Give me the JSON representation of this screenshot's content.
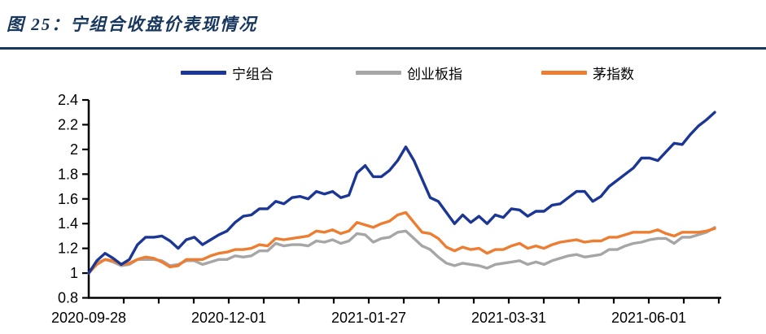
{
  "title": "图 25：宁组合收盘价表现情况",
  "colors": {
    "title_navy": "#17375E",
    "rule_navy": "#17375E",
    "axis_black": "#000000",
    "series_ning": "#1B3694",
    "series_chinext": "#A6A6A6",
    "series_mao": "#ED7D31"
  },
  "chart_data": {
    "type": "line",
    "title": "图 25：宁组合收盘价表现情况",
    "xlabel": "",
    "ylabel": "",
    "grid": false,
    "legend_position": "top",
    "ylim": [
      0.8,
      2.4
    ],
    "y_tick_labels": [
      "0.8",
      "1",
      "1.2",
      "1.4",
      "1.6",
      "1.8",
      "2",
      "2.2",
      "2.4"
    ],
    "x_tick_labels": [
      "2020-09-28",
      "2020-12-01",
      "2021-01-27",
      "2021-03-31",
      "2021-06-01"
    ],
    "x_label_tick_indices": [
      0,
      4,
      8,
      12,
      16
    ],
    "x_minor_tick_count": 18,
    "series": [
      {
        "name": "宁组合",
        "color": "#1B3694",
        "values": [
          1.0,
          1.1,
          1.16,
          1.12,
          1.07,
          1.11,
          1.23,
          1.29,
          1.29,
          1.3,
          1.26,
          1.2,
          1.27,
          1.29,
          1.23,
          1.27,
          1.31,
          1.34,
          1.41,
          1.46,
          1.47,
          1.52,
          1.52,
          1.58,
          1.56,
          1.61,
          1.62,
          1.6,
          1.66,
          1.64,
          1.66,
          1.61,
          1.63,
          1.81,
          1.87,
          1.78,
          1.78,
          1.83,
          1.91,
          2.02,
          1.91,
          1.76,
          1.61,
          1.58,
          1.49,
          1.4,
          1.47,
          1.41,
          1.46,
          1.4,
          1.47,
          1.45,
          1.52,
          1.51,
          1.46,
          1.5,
          1.5,
          1.55,
          1.56,
          1.61,
          1.66,
          1.66,
          1.58,
          1.62,
          1.7,
          1.75,
          1.8,
          1.85,
          1.93,
          1.93,
          1.91,
          1.98,
          2.05,
          2.04,
          2.12,
          2.19,
          2.24,
          2.3
        ]
      },
      {
        "name": "创业板指",
        "color": "#A6A6A6",
        "values": [
          1.0,
          1.08,
          1.11,
          1.09,
          1.06,
          1.07,
          1.11,
          1.11,
          1.11,
          1.1,
          1.06,
          1.07,
          1.1,
          1.1,
          1.07,
          1.09,
          1.11,
          1.11,
          1.14,
          1.13,
          1.14,
          1.18,
          1.18,
          1.24,
          1.22,
          1.23,
          1.23,
          1.22,
          1.26,
          1.25,
          1.27,
          1.24,
          1.26,
          1.32,
          1.31,
          1.25,
          1.28,
          1.29,
          1.33,
          1.34,
          1.28,
          1.22,
          1.19,
          1.13,
          1.08,
          1.06,
          1.08,
          1.07,
          1.06,
          1.04,
          1.07,
          1.08,
          1.09,
          1.1,
          1.07,
          1.09,
          1.07,
          1.1,
          1.12,
          1.14,
          1.15,
          1.13,
          1.14,
          1.15,
          1.19,
          1.19,
          1.22,
          1.24,
          1.25,
          1.27,
          1.28,
          1.28,
          1.24,
          1.29,
          1.29,
          1.31,
          1.33,
          1.37
        ]
      },
      {
        "name": "茅指数",
        "color": "#ED7D31",
        "values": [
          1.0,
          1.07,
          1.11,
          1.1,
          1.07,
          1.08,
          1.11,
          1.13,
          1.12,
          1.09,
          1.05,
          1.06,
          1.11,
          1.11,
          1.11,
          1.14,
          1.16,
          1.17,
          1.19,
          1.19,
          1.2,
          1.23,
          1.22,
          1.28,
          1.27,
          1.28,
          1.29,
          1.3,
          1.34,
          1.33,
          1.35,
          1.32,
          1.34,
          1.41,
          1.39,
          1.37,
          1.4,
          1.42,
          1.47,
          1.49,
          1.41,
          1.33,
          1.32,
          1.28,
          1.21,
          1.18,
          1.21,
          1.19,
          1.2,
          1.16,
          1.19,
          1.19,
          1.22,
          1.24,
          1.2,
          1.22,
          1.2,
          1.23,
          1.25,
          1.26,
          1.27,
          1.25,
          1.26,
          1.26,
          1.29,
          1.29,
          1.31,
          1.33,
          1.33,
          1.33,
          1.35,
          1.32,
          1.3,
          1.33,
          1.33,
          1.33,
          1.34,
          1.36
        ]
      }
    ]
  }
}
